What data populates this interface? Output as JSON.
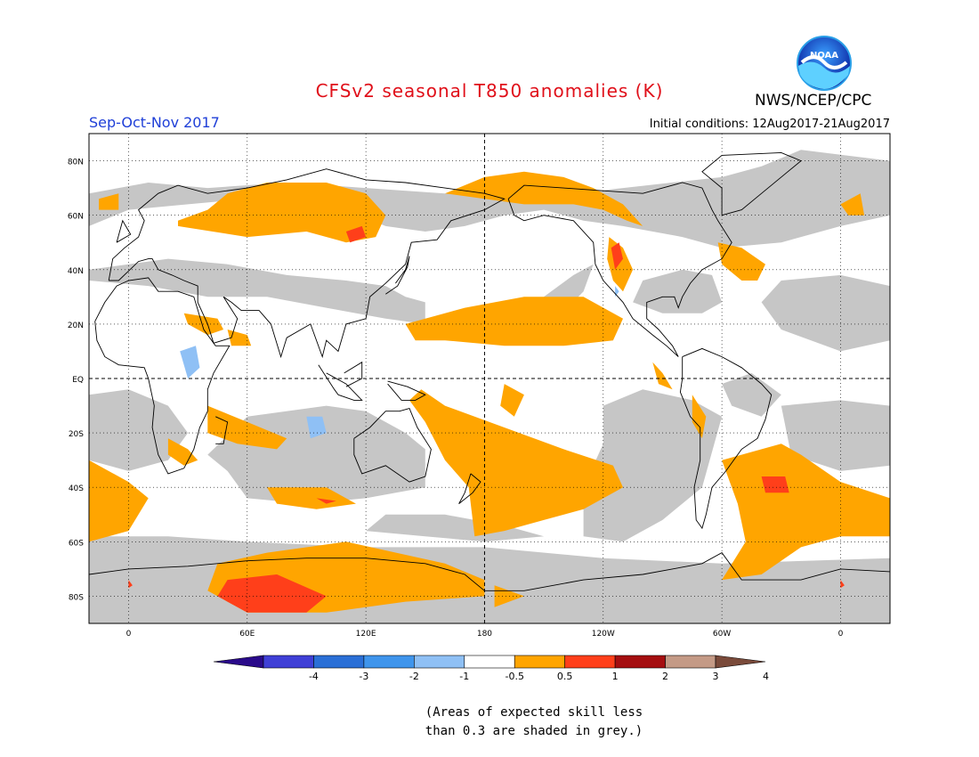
{
  "header": {
    "title": "CFSv2 seasonal T850 anomalies (K)",
    "season": "Sep-Oct-Nov 2017",
    "agency": "NWS/NCEP/CPC",
    "initial_conditions": "Initial conditions: 12Aug2017-21Aug2017",
    "logo_text": "NOAA"
  },
  "map": {
    "lat_labels": [
      "80N",
      "60N",
      "40N",
      "20N",
      "EQ",
      "20S",
      "40S",
      "60S",
      "80S"
    ],
    "lat_values": [
      80,
      60,
      40,
      20,
      0,
      -20,
      -40,
      -60,
      -80
    ],
    "lon_labels": [
      "0",
      "60E",
      "120E",
      "180",
      "120W",
      "60W",
      "0"
    ],
    "lon_values": [
      0,
      60,
      120,
      180,
      240,
      300,
      360
    ],
    "lon_range": [
      -20,
      385
    ],
    "lat_range": [
      -90,
      90
    ],
    "colors": {
      "skill_grey": "#c6c6c6",
      "anom_0_5_1": "#ffa500",
      "anom_1_2": "#ff3f1a",
      "anom_2_3": "#a50e10",
      "neg_0_5_1": "#8fc0f5",
      "land_line": "#000000"
    }
  },
  "colorbar": {
    "labels": [
      "-4",
      "-3",
      "-2",
      "-1",
      "-0.5",
      "0.5",
      "1",
      "2",
      "3",
      "4"
    ],
    "colors": [
      "#2a0a8a",
      "#3f3fd6",
      "#2a6fd6",
      "#3f95ec",
      "#8fc0f5",
      "#ffffff",
      "#ffa500",
      "#ff3f1a",
      "#a50e10",
      "#c49a86",
      "#7a4a3a"
    ]
  },
  "note": {
    "line1": "(Areas of expected skill less",
    "line2": "than 0.3 are shaded in grey.)"
  }
}
